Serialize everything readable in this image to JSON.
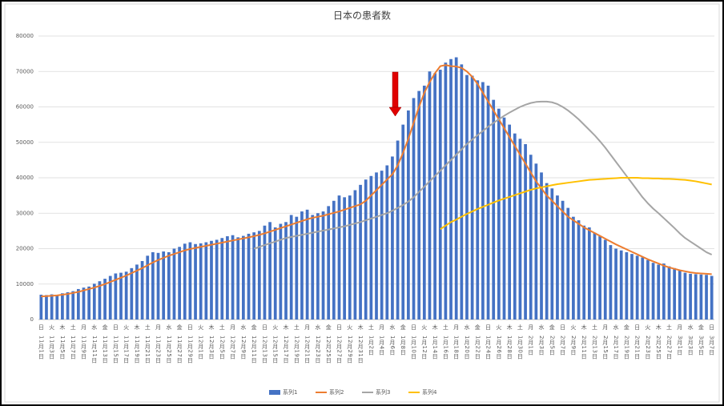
{
  "chart_data": {
    "type": "bar-line",
    "title": "日本の患者数",
    "ylim": [
      0,
      80000
    ],
    "yticks": [
      0,
      10000,
      20000,
      30000,
      40000,
      50000,
      60000,
      70000,
      80000
    ],
    "grid": true,
    "legend": "bottom",
    "weekdays": [
      "日",
      null,
      "火",
      null,
      "木",
      null,
      "土",
      null,
      "月",
      null,
      "水",
      null,
      "金",
      null,
      "日",
      null,
      "火",
      null,
      "木",
      null,
      "土",
      null,
      "月",
      null,
      "水",
      null,
      "金",
      null,
      "日",
      null,
      "火",
      null,
      "木",
      null,
      "土",
      null,
      "月",
      null,
      "水",
      null,
      "金",
      null,
      "日",
      null,
      "火",
      null,
      "木",
      null,
      "土",
      null,
      "月",
      null,
      "水",
      null,
      "金",
      null,
      "日",
      null,
      "火",
      null,
      "木",
      null,
      "土",
      null,
      "月",
      null,
      "水",
      null,
      "金",
      null,
      "日",
      null,
      "火",
      null,
      "木",
      null,
      "土",
      null,
      "月",
      null,
      "水",
      null,
      "金",
      null,
      "日",
      null,
      "火",
      null,
      "木",
      null,
      "土",
      null,
      "月",
      null,
      "水",
      null,
      "金",
      null,
      "日",
      null,
      "火",
      null,
      "木",
      null,
      "土",
      null,
      "月",
      null,
      "水",
      null,
      "金",
      null,
      "日",
      null,
      "火",
      null,
      "木",
      null,
      "土",
      null,
      "月",
      null,
      "水",
      null,
      "金",
      null,
      "日"
    ],
    "categories": [
      "11月1日",
      null,
      "11月3日",
      null,
      "11月5日",
      null,
      "11月7日",
      null,
      "11月9日",
      null,
      "11月11日",
      null,
      "11月13日",
      null,
      "11月15日",
      null,
      "11月17日",
      null,
      "11月19日",
      null,
      "11月21日",
      null,
      "11月23日",
      null,
      "11月25日",
      null,
      "11月27日",
      null,
      "11月29日",
      null,
      "12月1日",
      null,
      "12月3日",
      null,
      "12月5日",
      null,
      "12月7日",
      null,
      "12月9日",
      null,
      "12月11日",
      null,
      "12月13日",
      null,
      "12月15日",
      null,
      "12月17日",
      null,
      "12月19日",
      null,
      "12月21日",
      null,
      "12月23日",
      null,
      "12月25日",
      null,
      "12月27日",
      null,
      "12月29日",
      null,
      "12月31日",
      null,
      "1月2日",
      null,
      "1月4日",
      null,
      "1月6日",
      null,
      "1月8日",
      null,
      "1月10日",
      null,
      "1月12日",
      null,
      "1月14日",
      null,
      "1月16日",
      null,
      "1月18日",
      null,
      "1月20日",
      null,
      "1月22日",
      null,
      "1月24日",
      null,
      "1月26日",
      null,
      "1月28日",
      null,
      "1月30日",
      null,
      "2月1日",
      null,
      "2月3日",
      null,
      "2月5日",
      null,
      "2月7日",
      null,
      "2月9日",
      null,
      "2月11日",
      null,
      "2月13日",
      null,
      "2月15日",
      null,
      "2月17日",
      null,
      "2月19日",
      null,
      "2月21日",
      null,
      "2月23日",
      null,
      "2月25日",
      null,
      "2月27日",
      null,
      "3月1日",
      null,
      "3月3日",
      null,
      "3月5日",
      null,
      "3月7日"
    ],
    "series": [
      {
        "name": "系列1",
        "kind": "bar",
        "color": "#4472c4",
        "values": [
          7000,
          6900,
          7100,
          7000,
          7400,
          7700,
          8000,
          8600,
          9000,
          9300,
          10100,
          10800,
          11500,
          12300,
          13000,
          13200,
          13500,
          14500,
          15500,
          16500,
          18000,
          19000,
          18800,
          19200,
          19000,
          20000,
          20500,
          21400,
          21800,
          21300,
          21500,
          21800,
          22200,
          22500,
          23000,
          23500,
          23800,
          23200,
          23600,
          24200,
          24600,
          25000,
          26500,
          27500,
          26000,
          27000,
          27500,
          29500,
          29000,
          30500,
          31000,
          29500,
          30000,
          30500,
          32000,
          33500,
          35000,
          34500,
          35000,
          36500,
          38000,
          39500,
          40500,
          41500,
          42000,
          43500,
          46000,
          50500,
          55000,
          59000,
          62500,
          64500,
          66000,
          70000,
          69500,
          70500,
          72500,
          73500,
          74000,
          72000,
          69000,
          68800,
          67500,
          67000,
          66000,
          62000,
          59500,
          57000,
          55000,
          52500,
          51000,
          49500,
          46500,
          44000,
          41500,
          38500,
          37000,
          35000,
          33500,
          31500,
          29000,
          28000,
          26500,
          26000,
          24500,
          23500,
          22500,
          21000,
          20000,
          19500,
          19000,
          18500,
          18000,
          17500,
          16800,
          16000,
          15500,
          15800,
          15000,
          14500,
          13800,
          13200,
          12900,
          12800,
          12700,
          12600,
          12300
        ]
      },
      {
        "name": "系列2",
        "kind": "line",
        "color": "#ed7d31",
        "values": [
          6500,
          6600,
          6700,
          6800,
          7000,
          7200,
          7500,
          7800,
          8200,
          8600,
          9000,
          9500,
          10000,
          10600,
          11200,
          11800,
          12400,
          13100,
          13800,
          14500,
          15300,
          16100,
          16800,
          17400,
          18000,
          18500,
          19000,
          19500,
          19900,
          20200,
          20500,
          20800,
          21100,
          21400,
          21700,
          22000,
          22300,
          22600,
          22900,
          23200,
          23500,
          23900,
          24300,
          24800,
          25300,
          25800,
          26300,
          26800,
          27300,
          27800,
          28300,
          28700,
          29000,
          29300,
          29700,
          30100,
          30500,
          31000,
          31500,
          32000,
          32500,
          33500,
          35000,
          36500,
          38000,
          39500,
          41000,
          43500,
          47000,
          51000,
          55500,
          60000,
          64000,
          67000,
          69500,
          71500,
          71800,
          71500,
          71400,
          71000,
          70000,
          68500,
          66500,
          64000,
          61500,
          59000,
          56500,
          54000,
          51500,
          49000,
          46500,
          44000,
          41500,
          39000,
          37000,
          35000,
          33500,
          32000,
          30500,
          29000,
          28000,
          27000,
          26000,
          25200,
          24400,
          23600,
          22800,
          22000,
          21200,
          20500,
          19800,
          19100,
          18400,
          17700,
          17000,
          16400,
          15800,
          15200,
          14700,
          14300,
          13900,
          13600,
          13300,
          13100,
          13000,
          12900,
          12800
        ]
      },
      {
        "name": "系列3",
        "kind": "line",
        "color": "#a5a5a5",
        "values": [
          null,
          null,
          null,
          null,
          null,
          null,
          null,
          null,
          null,
          null,
          null,
          null,
          null,
          null,
          null,
          null,
          null,
          null,
          null,
          null,
          null,
          null,
          null,
          null,
          null,
          null,
          null,
          null,
          null,
          null,
          null,
          null,
          null,
          null,
          null,
          null,
          null,
          null,
          null,
          null,
          20000,
          20500,
          21000,
          21500,
          22000,
          22500,
          23000,
          23300,
          23600,
          23900,
          24200,
          24500,
          24800,
          25100,
          25400,
          25700,
          26000,
          26300,
          26700,
          27100,
          27500,
          28000,
          28500,
          29000,
          29500,
          30000,
          30700,
          31500,
          32300,
          33300,
          34500,
          36000,
          37500,
          39000,
          40500,
          42000,
          43500,
          45000,
          46500,
          48000,
          49500,
          50800,
          52000,
          53200,
          54400,
          55500,
          56500,
          57500,
          58400,
          59200,
          60000,
          60600,
          61100,
          61400,
          61500,
          61500,
          61300,
          60800,
          60000,
          59000,
          57800,
          56500,
          55000,
          53500,
          52000,
          50300,
          48500,
          46500,
          44500,
          42500,
          40500,
          38500,
          36500,
          34500,
          32800,
          31300,
          30000,
          28600,
          27200,
          25800,
          24300,
          23000,
          22000,
          21000,
          20000,
          19000,
          18300
        ]
      },
      {
        "name": "系列4",
        "kind": "line",
        "color": "#ffc000",
        "values": [
          null,
          null,
          null,
          null,
          null,
          null,
          null,
          null,
          null,
          null,
          null,
          null,
          null,
          null,
          null,
          null,
          null,
          null,
          null,
          null,
          null,
          null,
          null,
          null,
          null,
          null,
          null,
          null,
          null,
          null,
          null,
          null,
          null,
          null,
          null,
          null,
          null,
          null,
          null,
          null,
          null,
          null,
          null,
          null,
          null,
          null,
          null,
          null,
          null,
          null,
          null,
          null,
          null,
          null,
          null,
          null,
          null,
          null,
          null,
          null,
          null,
          null,
          null,
          null,
          null,
          null,
          null,
          null,
          null,
          null,
          null,
          null,
          null,
          null,
          null,
          25500,
          26500,
          27500,
          28200,
          29000,
          29800,
          30500,
          31200,
          31800,
          32400,
          33000,
          33600,
          34100,
          34600,
          35100,
          35600,
          36100,
          36600,
          37000,
          37300,
          37600,
          37900,
          38200,
          38400,
          38600,
          38800,
          39000,
          39200,
          39400,
          39500,
          39600,
          39700,
          39800,
          39900,
          40000,
          40000,
          40000,
          40000,
          39900,
          39900,
          39800,
          39800,
          39700,
          39700,
          39600,
          39500,
          39400,
          39200,
          39000,
          38700,
          38400,
          38100
        ]
      }
    ]
  }
}
